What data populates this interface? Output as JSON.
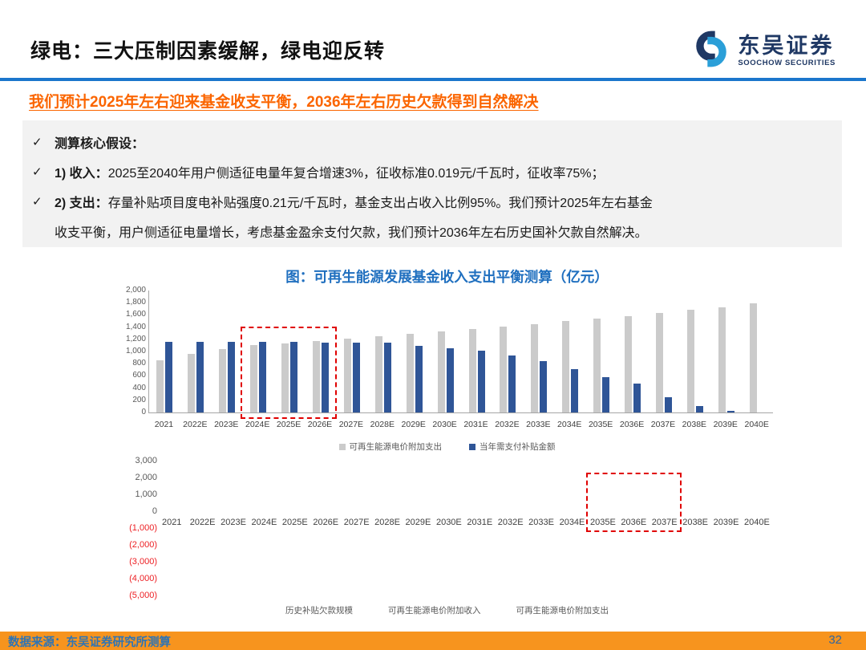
{
  "header": {
    "title": "绿电：三大压制因素缓解，绿电迎反转",
    "logo": {
      "cn": "东吴证券",
      "en": "SOOCHOW SECURITIES"
    }
  },
  "subtitle": "我们预计2025年左右迎来基金收支平衡，2036年左右历史欠款得到自然解决",
  "assumptions": {
    "check": "✓",
    "heading": "测算核心假设：",
    "item1_label": "1) 收入：",
    "item1_text": "2025至2040年用户侧适征电量年复合增速3%，征收标准0.019元/千瓦时，征收率75%；",
    "item2_label": "2) 支出：",
    "item2_text": "存量补贴项目度电补贴强度0.21元/千瓦时，基金支出占收入比例95%。我们预计2025年左右基金",
    "item2_cont": "收支平衡，用户侧适征电量增长，考虑基金盈余支付欠款，我们预计2036年左右历史国补欠款自然解决。"
  },
  "chart_title": "图：可再生能源发展基金收入支出平衡测算（亿元）",
  "chart_data": [
    {
      "type": "bar",
      "title": "可再生能源发展基金收入支出平衡测算（亿元）- 上图",
      "categories": [
        "2021",
        "2022E",
        "2023E",
        "2024E",
        "2025E",
        "2026E",
        "2027E",
        "2028E",
        "2029E",
        "2030E",
        "2031E",
        "2032E",
        "2033E",
        "2034E",
        "2035E",
        "2036E",
        "2037E",
        "2038E",
        "2039E",
        "2040E"
      ],
      "series": [
        {
          "name": "可再生能源电价附加支出",
          "color": "#CBCBCB",
          "values": [
            860,
            965,
            1045,
            1105,
            1135,
            1170,
            1210,
            1255,
            1290,
            1330,
            1375,
            1410,
            1450,
            1495,
            1540,
            1585,
            1635,
            1685,
            1730,
            1790
          ]
        },
        {
          "name": "当年需支付补贴金额",
          "color": "#2F5597",
          "values": [
            1155,
            1155,
            1155,
            1155,
            1155,
            1150,
            1150,
            1150,
            1095,
            1055,
            1015,
            940,
            840,
            715,
            575,
            480,
            255,
            100,
            25,
            0
          ]
        }
      ],
      "ylim": [
        0,
        2000
      ],
      "ytick_labels": [
        "2,000",
        "1,800",
        "1,600",
        "1,400",
        "1,200",
        "1,000",
        "800",
        "600",
        "400",
        "200",
        "0"
      ],
      "grid": false,
      "legend_position": "bottom",
      "highlight_box": {
        "from": "2024E",
        "to": "2026E"
      }
    },
    {
      "type": "bar",
      "title": "可再生能源发展基金收入支出平衡测算（亿元）- 下图",
      "categories": [
        "2021",
        "2022E",
        "2023E",
        "2024E",
        "2025E",
        "2026E",
        "2027E",
        "2028E",
        "2029E",
        "2030E",
        "2031E",
        "2032E",
        "2033E",
        "2034E",
        "2035E",
        "2036E",
        "2037E",
        "2038E",
        "2039E",
        "2040E"
      ],
      "series": [
        {
          "name": "历史补贴欠款规模",
          "values": []
        },
        {
          "name": "可再生能源电价附加收入",
          "values": []
        },
        {
          "name": "可再生能源电价附加支出",
          "values": []
        }
      ],
      "note": "plot area appears empty in screenshot; only axes, category labels and legend text are visible",
      "ylim": [
        -5000,
        3000
      ],
      "ytick_labels": [
        "3,000",
        "2,000",
        "1,000",
        "0",
        "(1,000)",
        "(2,000)",
        "(3,000)",
        "(4,000)",
        "(5,000)"
      ],
      "grid": false,
      "legend_position": "bottom",
      "highlight_box": {
        "from": "2035E",
        "to": "2037E"
      }
    }
  ],
  "footer": {
    "source": "数据来源：东吴证券研究所测算",
    "page": "32"
  },
  "colors": {
    "rule_blue": "#1B76CC",
    "subtitle_orange": "#FB6500",
    "chart_title_blue": "#1F6FBF",
    "bar_gray": "#CBCBCB",
    "bar_blue": "#2F5597",
    "highlight_red": "#E00000",
    "negative_red": "#ED2024",
    "footer_orange": "#F7941E",
    "footer_text_blue": "#2E74B5"
  }
}
